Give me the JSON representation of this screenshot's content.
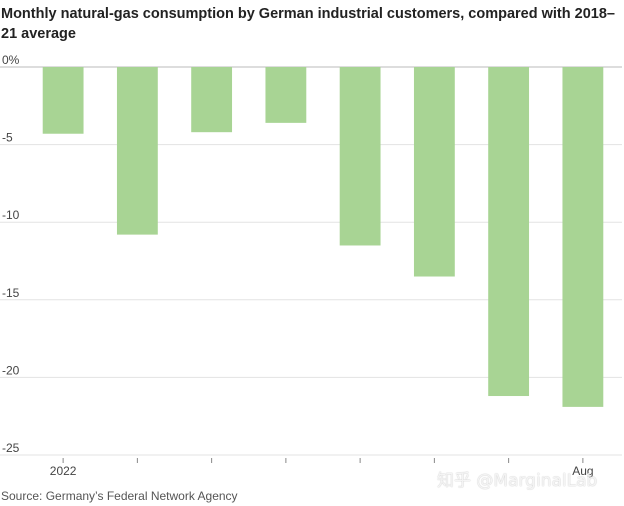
{
  "chart_data": {
    "type": "bar",
    "title": "Monthly natural-gas consumption by German industrial customers, compared with 2018–21 average",
    "source": "Source: Germany’s Federal Network Agency",
    "categories": [
      "2022",
      "",
      "",
      "",
      "",
      "",
      "",
      "Aug"
    ],
    "values": [
      -4.3,
      -10.8,
      -4.2,
      -3.6,
      -11.5,
      -13.5,
      -21.2,
      -21.9
    ],
    "y_ticks": [
      "0%",
      "-5",
      "-10",
      "-15",
      "-20",
      "-25"
    ],
    "y_tick_values": [
      0,
      -5,
      -10,
      -15,
      -20,
      -25
    ],
    "ylim": [
      -25,
      0
    ],
    "bar_color": "#a8d494",
    "grid": true,
    "legend": "none"
  },
  "watermark": "知乎 @MarginalLab"
}
